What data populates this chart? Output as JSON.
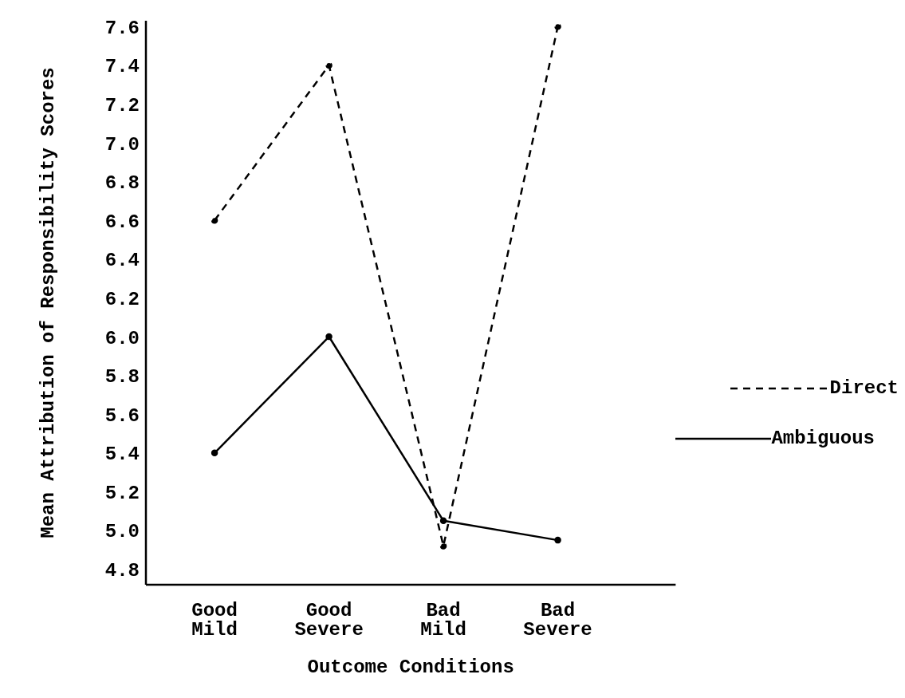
{
  "chart_data": {
    "type": "line",
    "xlabel": "Outcome Conditions",
    "ylabel": "Mean Attribution of Responsibility Scores",
    "categories": [
      "Good Mild",
      "Good Severe",
      "Bad Mild",
      "Bad Severe"
    ],
    "series": [
      {
        "name": "Direct",
        "color": "#000000",
        "line_style": "dashed",
        "values": [
          6.6,
          7.4,
          4.92,
          7.6
        ]
      },
      {
        "name": "Ambiguous",
        "color": "#000000",
        "line_style": "solid",
        "values": [
          5.4,
          6.0,
          5.05,
          4.95
        ]
      }
    ],
    "ylim": [
      4.72,
      7.63
    ],
    "yticks": [
      4.8,
      {
        "value": 5,
        "label": "5.0"
      },
      5.2,
      5.4,
      5.6,
      5.8,
      {
        "value": 6,
        "label": "6.0"
      },
      6.2,
      6.4,
      6.6,
      6.8,
      {
        "value": 7,
        "label": "7.0"
      },
      7.2,
      7.4,
      7.6
    ],
    "grid": false,
    "legend": "right",
    "marker": "circle"
  }
}
